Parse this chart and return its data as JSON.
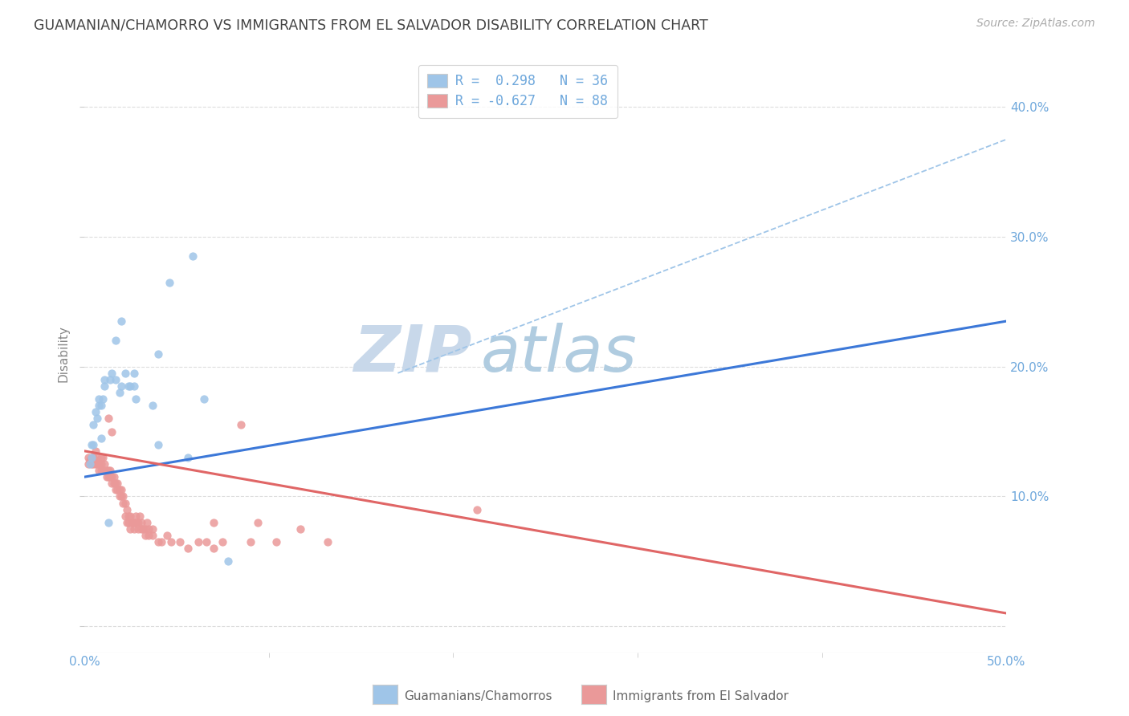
{
  "title": "GUAMANIAN/CHAMORRO VS IMMIGRANTS FROM EL SALVADOR DISABILITY CORRELATION CHART",
  "source": "Source: ZipAtlas.com",
  "ylabel": "Disability",
  "xlim": [
    0.0,
    0.5
  ],
  "ylim": [
    -0.02,
    0.44
  ],
  "xtick_positions": [
    0.0,
    0.5
  ],
  "xtick_labels": [
    "0.0%",
    "50.0%"
  ],
  "ytick_positions": [
    0.0,
    0.1,
    0.2,
    0.3,
    0.4
  ],
  "ytick_labels_left": [
    "",
    "",
    "",
    "",
    ""
  ],
  "ytick_labels_right": [
    "",
    "10.0%",
    "20.0%",
    "30.0%",
    "40.0%"
  ],
  "legend_r1": "R =  0.298   N = 36",
  "legend_r2": "R = -0.627   N = 88",
  "blue_color": "#9fc5e8",
  "pink_color": "#ea9999",
  "blue_line_color": "#3c78d8",
  "pink_line_color": "#e06666",
  "dashed_line_color": "#9fc5e8",
  "title_color": "#434343",
  "axis_color": "#6fa8dc",
  "tick_color": "#6fa8dc",
  "watermark_zip_color": "#d0dff0",
  "watermark_atlas_color": "#b8d0e8",
  "grid_color": "#dddddd",
  "background_color": "#ffffff",
  "blue_scatter": [
    [
      0.003,
      0.125
    ],
    [
      0.004,
      0.13
    ],
    [
      0.004,
      0.14
    ],
    [
      0.005,
      0.155
    ],
    [
      0.005,
      0.14
    ],
    [
      0.006,
      0.165
    ],
    [
      0.007,
      0.16
    ],
    [
      0.008,
      0.17
    ],
    [
      0.008,
      0.175
    ],
    [
      0.009,
      0.17
    ],
    [
      0.01,
      0.175
    ],
    [
      0.011,
      0.185
    ],
    [
      0.011,
      0.19
    ],
    [
      0.014,
      0.19
    ],
    [
      0.015,
      0.195
    ],
    [
      0.017,
      0.19
    ],
    [
      0.019,
      0.18
    ],
    [
      0.02,
      0.185
    ],
    [
      0.022,
      0.195
    ],
    [
      0.025,
      0.185
    ],
    [
      0.027,
      0.185
    ],
    [
      0.028,
      0.175
    ],
    [
      0.009,
      0.145
    ],
    [
      0.013,
      0.08
    ],
    [
      0.017,
      0.22
    ],
    [
      0.02,
      0.235
    ],
    [
      0.024,
      0.185
    ],
    [
      0.027,
      0.195
    ],
    [
      0.04,
      0.21
    ],
    [
      0.037,
      0.17
    ],
    [
      0.065,
      0.175
    ],
    [
      0.056,
      0.13
    ],
    [
      0.046,
      0.265
    ],
    [
      0.059,
      0.285
    ],
    [
      0.04,
      0.14
    ],
    [
      0.078,
      0.05
    ]
  ],
  "pink_scatter": [
    [
      0.002,
      0.125
    ],
    [
      0.002,
      0.13
    ],
    [
      0.003,
      0.128
    ],
    [
      0.003,
      0.127
    ],
    [
      0.004,
      0.125
    ],
    [
      0.004,
      0.13
    ],
    [
      0.005,
      0.125
    ],
    [
      0.005,
      0.13
    ],
    [
      0.006,
      0.135
    ],
    [
      0.006,
      0.128
    ],
    [
      0.006,
      0.125
    ],
    [
      0.007,
      0.13
    ],
    [
      0.007,
      0.125
    ],
    [
      0.008,
      0.12
    ],
    [
      0.008,
      0.125
    ],
    [
      0.009,
      0.12
    ],
    [
      0.009,
      0.13
    ],
    [
      0.009,
      0.125
    ],
    [
      0.01,
      0.12
    ],
    [
      0.01,
      0.13
    ],
    [
      0.011,
      0.12
    ],
    [
      0.011,
      0.125
    ],
    [
      0.012,
      0.115
    ],
    [
      0.012,
      0.12
    ],
    [
      0.013,
      0.115
    ],
    [
      0.013,
      0.12
    ],
    [
      0.014,
      0.115
    ],
    [
      0.014,
      0.12
    ],
    [
      0.015,
      0.11
    ],
    [
      0.015,
      0.115
    ],
    [
      0.016,
      0.11
    ],
    [
      0.016,
      0.115
    ],
    [
      0.017,
      0.105
    ],
    [
      0.017,
      0.11
    ],
    [
      0.018,
      0.105
    ],
    [
      0.018,
      0.11
    ],
    [
      0.019,
      0.1
    ],
    [
      0.019,
      0.105
    ],
    [
      0.02,
      0.1
    ],
    [
      0.02,
      0.105
    ],
    [
      0.021,
      0.095
    ],
    [
      0.021,
      0.1
    ],
    [
      0.022,
      0.095
    ],
    [
      0.022,
      0.085
    ],
    [
      0.023,
      0.08
    ],
    [
      0.023,
      0.09
    ],
    [
      0.024,
      0.085
    ],
    [
      0.024,
      0.08
    ],
    [
      0.025,
      0.075
    ],
    [
      0.025,
      0.085
    ],
    [
      0.026,
      0.08
    ],
    [
      0.027,
      0.08
    ],
    [
      0.027,
      0.075
    ],
    [
      0.028,
      0.085
    ],
    [
      0.028,
      0.08
    ],
    [
      0.029,
      0.075
    ],
    [
      0.029,
      0.08
    ],
    [
      0.03,
      0.085
    ],
    [
      0.031,
      0.075
    ],
    [
      0.031,
      0.08
    ],
    [
      0.032,
      0.075
    ],
    [
      0.033,
      0.075
    ],
    [
      0.033,
      0.07
    ],
    [
      0.034,
      0.08
    ],
    [
      0.035,
      0.075
    ],
    [
      0.035,
      0.07
    ],
    [
      0.037,
      0.075
    ],
    [
      0.037,
      0.07
    ],
    [
      0.04,
      0.065
    ],
    [
      0.042,
      0.065
    ],
    [
      0.045,
      0.07
    ],
    [
      0.047,
      0.065
    ],
    [
      0.052,
      0.065
    ],
    [
      0.056,
      0.06
    ],
    [
      0.062,
      0.065
    ],
    [
      0.066,
      0.065
    ],
    [
      0.07,
      0.06
    ],
    [
      0.07,
      0.08
    ],
    [
      0.075,
      0.065
    ],
    [
      0.085,
      0.155
    ],
    [
      0.09,
      0.065
    ],
    [
      0.094,
      0.08
    ],
    [
      0.104,
      0.065
    ],
    [
      0.117,
      0.075
    ],
    [
      0.132,
      0.065
    ],
    [
      0.213,
      0.09
    ],
    [
      0.013,
      0.16
    ],
    [
      0.015,
      0.15
    ]
  ],
  "blue_line_x": [
    0.0,
    0.5
  ],
  "blue_line_y": [
    0.115,
    0.235
  ],
  "pink_line_x": [
    0.0,
    0.5
  ],
  "pink_line_y": [
    0.135,
    0.01
  ],
  "dashed_line_x": [
    0.17,
    0.5
  ],
  "dashed_line_y": [
    0.195,
    0.375
  ]
}
